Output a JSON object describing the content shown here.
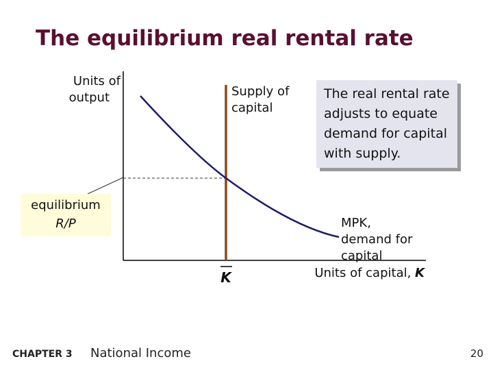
{
  "title": "The equilibrium real rental rate",
  "axes": {
    "y_label": [
      "Units of",
      "output"
    ],
    "x_label": {
      "text": "Units of capital, ",
      "symbol": "K"
    }
  },
  "supply_label": [
    "Supply of",
    "capital"
  ],
  "k_bar": "K",
  "demand_label": [
    "MPK,",
    "demand for",
    "capital"
  ],
  "equilibrium_label": {
    "text": "equilibrium",
    "symbol": "R/P"
  },
  "callout": [
    "The real rental rate",
    "adjusts to equate",
    "demand for capital",
    "with supply."
  ],
  "footer": {
    "chapter": "CHAPTER 3",
    "section": "National Income",
    "page": "20"
  }
}
